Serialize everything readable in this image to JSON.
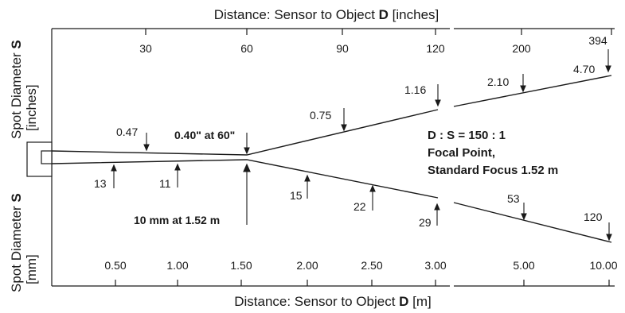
{
  "top_axis": {
    "title_prefix": "Distance: Sensor to Object ",
    "title_symbol": "D",
    "title_unit": " [inches]",
    "ticks": [
      "30",
      "60",
      "90",
      "120",
      "200",
      "394"
    ]
  },
  "bottom_axis": {
    "title_prefix": "Distance: Sensor to Object ",
    "title_symbol": "D",
    "title_unit": " [m]",
    "ticks": [
      "0.50",
      "1.00",
      "1.50",
      "2.00",
      "2.50",
      "3.00",
      "5.00",
      "10.00"
    ]
  },
  "left_axis": {
    "upper_title": "Spot Diameter ",
    "upper_symbol": "S",
    "upper_unit": "[inches]",
    "lower_title": "Spot Diameter ",
    "lower_symbol": "S",
    "lower_unit": "[mm]"
  },
  "inch_labels": [
    "0.47",
    "0.75",
    "1.16",
    "2.10",
    "4.70"
  ],
  "mm_labels": [
    "13",
    "11",
    "15",
    "22",
    "29",
    "53",
    "120"
  ],
  "focus_inch_note": "0.40\" at 60\"",
  "focus_mm_note": "10 mm at 1.52 m",
  "spec": {
    "ratio": "D : S = 150 : 1",
    "line2": "Focal Point,",
    "line3": "Standard Focus 1.52 m"
  },
  "colors": {
    "ink": "#1a1a1a",
    "background": "#ffffff"
  }
}
